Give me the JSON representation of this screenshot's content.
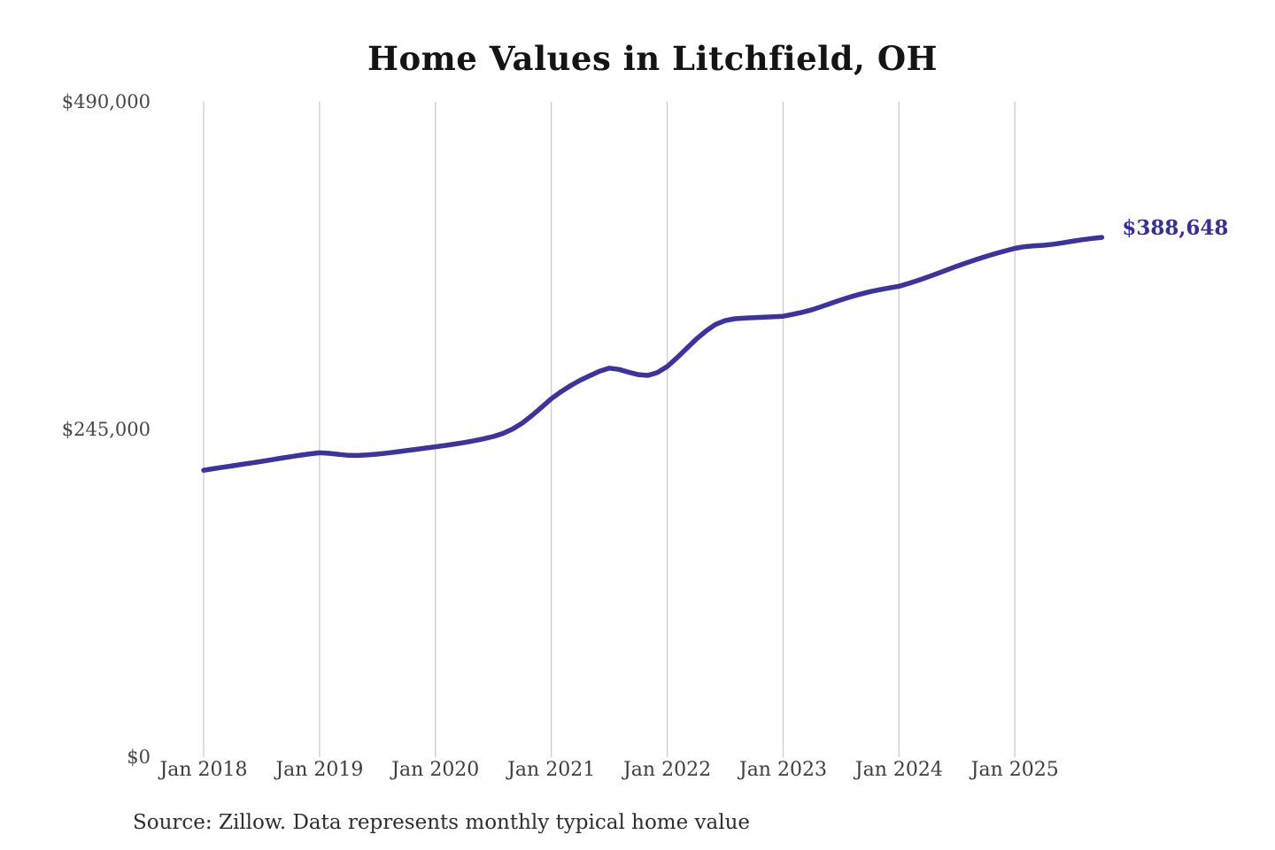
{
  "chart_data": {
    "type": "line",
    "title": "Home Values in Litchfield, OH",
    "source_note": "Source: Zillow. Data represents monthly typical home value",
    "xlabel": "",
    "ylabel": "",
    "x_unit": "month",
    "x_start": "2018-01",
    "x_end": "2025-10",
    "x_ticks": [
      "Jan 2018",
      "Jan 2019",
      "Jan 2020",
      "Jan 2021",
      "Jan 2022",
      "Jan 2023",
      "Jan 2024",
      "Jan 2025"
    ],
    "y_ticks": [
      {
        "label": "$490,000",
        "value": 490000
      },
      {
        "label": "$245,000",
        "value": 245000
      },
      {
        "label": "$0",
        "value": 0
      }
    ],
    "ylim": [
      0,
      490000
    ],
    "grid": "vertical-only",
    "legend": "none",
    "end_annotation": {
      "text": "$388,648",
      "value": 388648
    },
    "colors": {
      "line": "#3c32a0",
      "grid": "#cccccc",
      "title": "#141414",
      "axis_labels": "#454545",
      "annotation": "#342e9e",
      "background": "#ffffff"
    },
    "series": [
      {
        "name": "Typical home value",
        "values": [
          214500,
          215600,
          216700,
          217800,
          218900,
          220000,
          221100,
          222300,
          223500,
          224600,
          225700,
          226700,
          227500,
          227100,
          226300,
          225600,
          225500,
          225900,
          226500,
          227300,
          228200,
          229200,
          230100,
          231100,
          232000,
          233000,
          234100,
          235200,
          236500,
          238000,
          239700,
          242000,
          245300,
          249800,
          255400,
          261600,
          268000,
          273200,
          277800,
          281800,
          285200,
          288500,
          290800,
          289900,
          287800,
          286000,
          285400,
          287600,
          292000,
          298500,
          305500,
          312500,
          318500,
          323500,
          326400,
          327800,
          328300,
          328600,
          328900,
          329200,
          329600,
          331100,
          332600,
          334500,
          336900,
          339400,
          341900,
          344200,
          346200,
          348000,
          349500,
          350800,
          352100,
          354200,
          356500,
          359000,
          361700,
          364400,
          367100,
          369600,
          372100,
          374400,
          376500,
          378500,
          380400,
          381700,
          382300,
          382700,
          383500,
          384600,
          385800,
          386900,
          387800,
          388648
        ]
      }
    ]
  }
}
